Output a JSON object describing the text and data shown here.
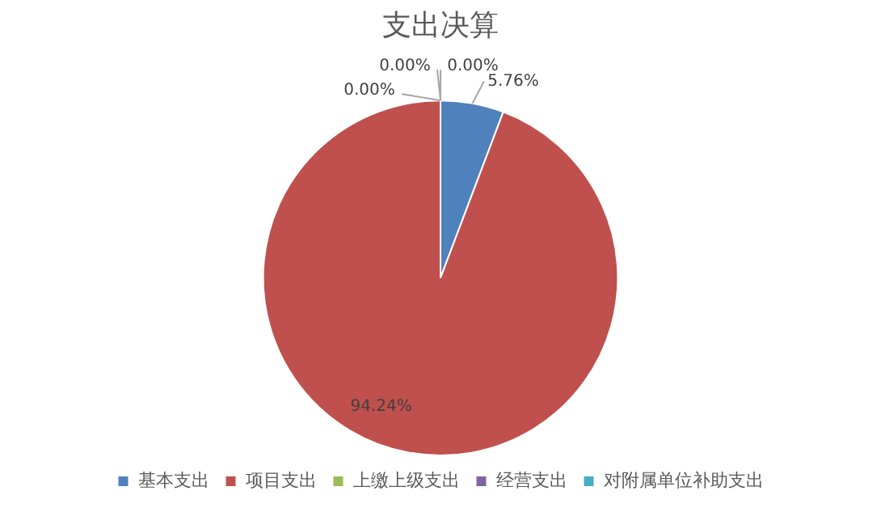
{
  "chart_data": {
    "type": "pie",
    "title": "支出决算",
    "categories": [
      "基本支出",
      "项目支出",
      "上缴上级支出",
      "经营支出",
      "对附属单位补助支出"
    ],
    "values": [
      5.76,
      94.24,
      0,
      0,
      0
    ],
    "value_labels": [
      "5.76%",
      "94.24%",
      "0.00%",
      "0.00%",
      "0.00%"
    ],
    "colors": [
      "#4f81bd",
      "#c0504d",
      "#9bbb59",
      "#8064a2",
      "#4bacc6"
    ],
    "legend": "bottom"
  }
}
